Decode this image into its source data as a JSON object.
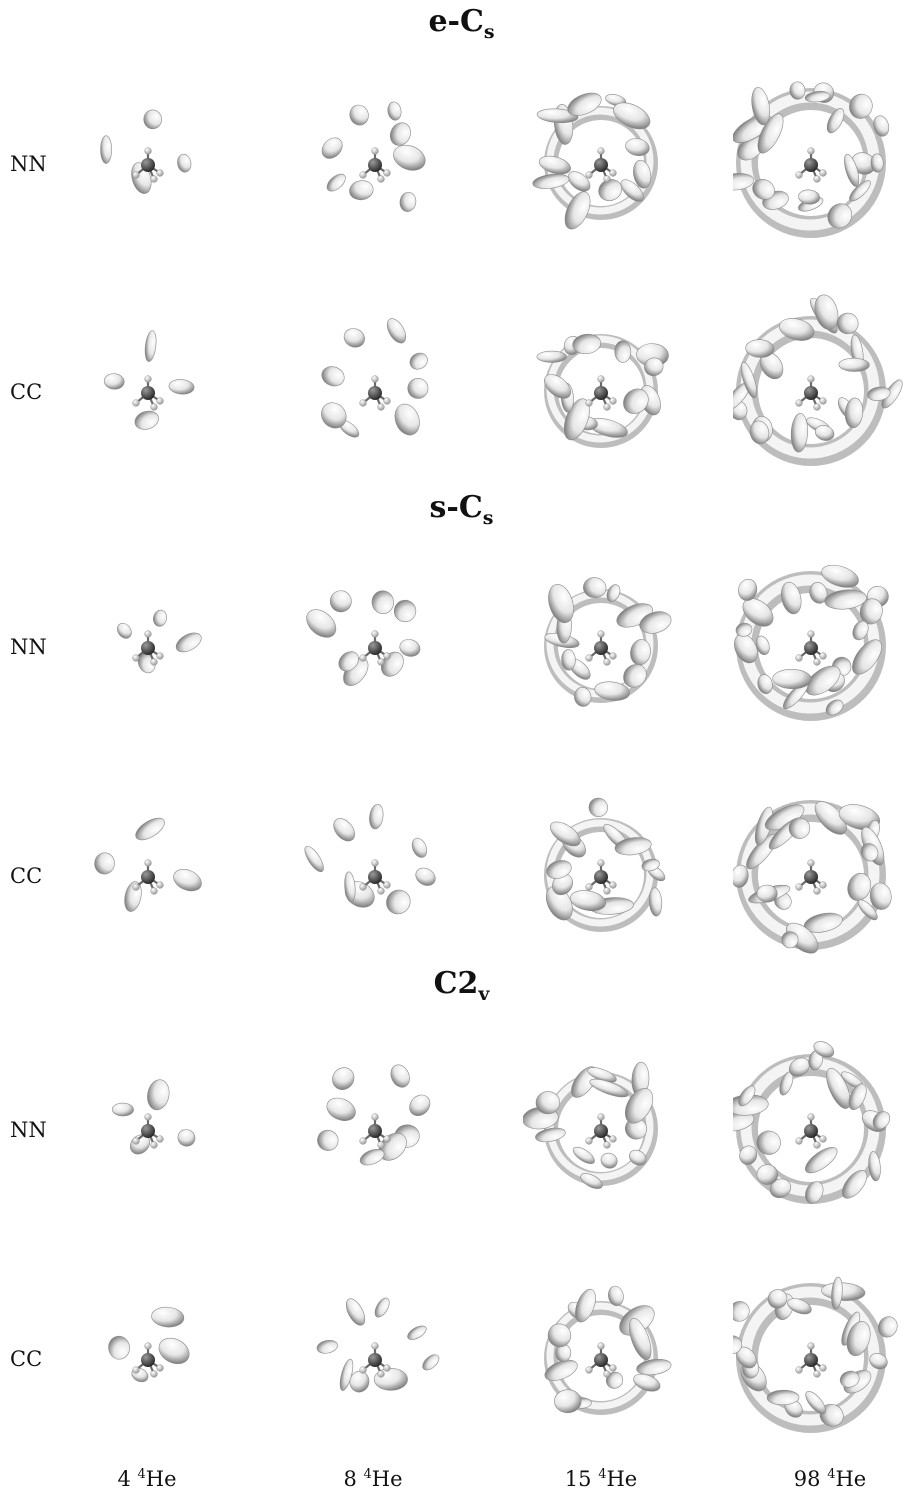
{
  "sections": [
    {
      "title_main": "e-C",
      "title_sub": "s"
    },
    {
      "title_main": "s-C",
      "title_sub": "s"
    },
    {
      "title_main": "C2",
      "title_sub": "v"
    }
  ],
  "row_labels": [
    "NN",
    "CC",
    "NN",
    "CC",
    "NN",
    "CC"
  ],
  "columns": [
    {
      "count": "4",
      "isotope_mass": "4",
      "element": "He"
    },
    {
      "count": "8",
      "isotope_mass": "4",
      "element": "He"
    },
    {
      "count": "15",
      "isotope_mass": "4",
      "element": "He"
    },
    {
      "count": "98",
      "isotope_mass": "4",
      "element": "He"
    }
  ],
  "colors": {
    "background": "#ffffff",
    "helium_density_surface": "#e6e6e6",
    "surface_shadow": "#7a7a7a",
    "carbon_atom": "#2a2a2a",
    "hydrogen_atom": "#f2f2f2"
  }
}
